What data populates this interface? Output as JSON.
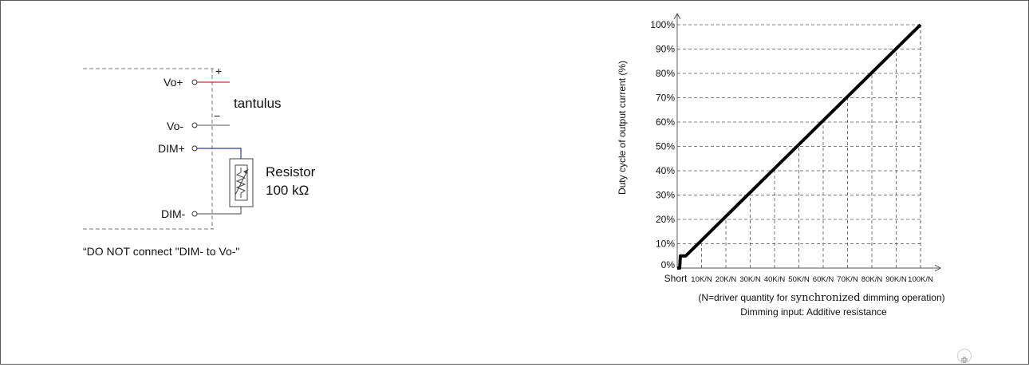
{
  "circuit": {
    "vo_plus": "Vo+",
    "vo_minus": "Vo-",
    "dim_plus": "DIM+",
    "dim_minus": "DIM-",
    "plus_sign": "+",
    "minus_sign": "−",
    "tantulus": "tantulus",
    "resistor_label": "Resistor",
    "resistor_value": "100 kΩ",
    "note": "“DO NOT connect \"DIM- to Vo-\""
  },
  "chart_data": {
    "type": "line",
    "ylabel": "Duty cycle of output current (%)",
    "yticks": [
      "0%",
      "10%",
      "20%",
      "30%",
      "40%",
      "50%",
      "60%",
      "70%",
      "80%",
      "90%",
      "100%"
    ],
    "ylim": [
      0,
      100
    ],
    "x_origin_label": "Short",
    "xticks": [
      "10K/N",
      "20K/N",
      "30K/N",
      "40K/N",
      "50K/N",
      "60K/N",
      "70K/N",
      "80K/N",
      "90K/N",
      "100K/N"
    ],
    "xlim": [
      0,
      100
    ],
    "xlabel_line1_a": "(N=driver quantity for ",
    "xlabel_line1_b": "synchronized",
    "xlabel_line1_c": " dimming operation)",
    "xlabel_line2": "Dimming input: Additive resistance",
    "grid": "dashed",
    "series": [
      {
        "x": [
          0,
          1,
          1.3,
          3.5,
          100
        ],
        "y": [
          0,
          0,
          5,
          5,
          100
        ]
      }
    ],
    "line_color": "#000000"
  },
  "colors": {
    "vo_plus_wire": "#c0392b",
    "dim_plus_wire": "#2c3e9e"
  },
  "icons": {
    "fit_button": "fit-screen-icon"
  }
}
